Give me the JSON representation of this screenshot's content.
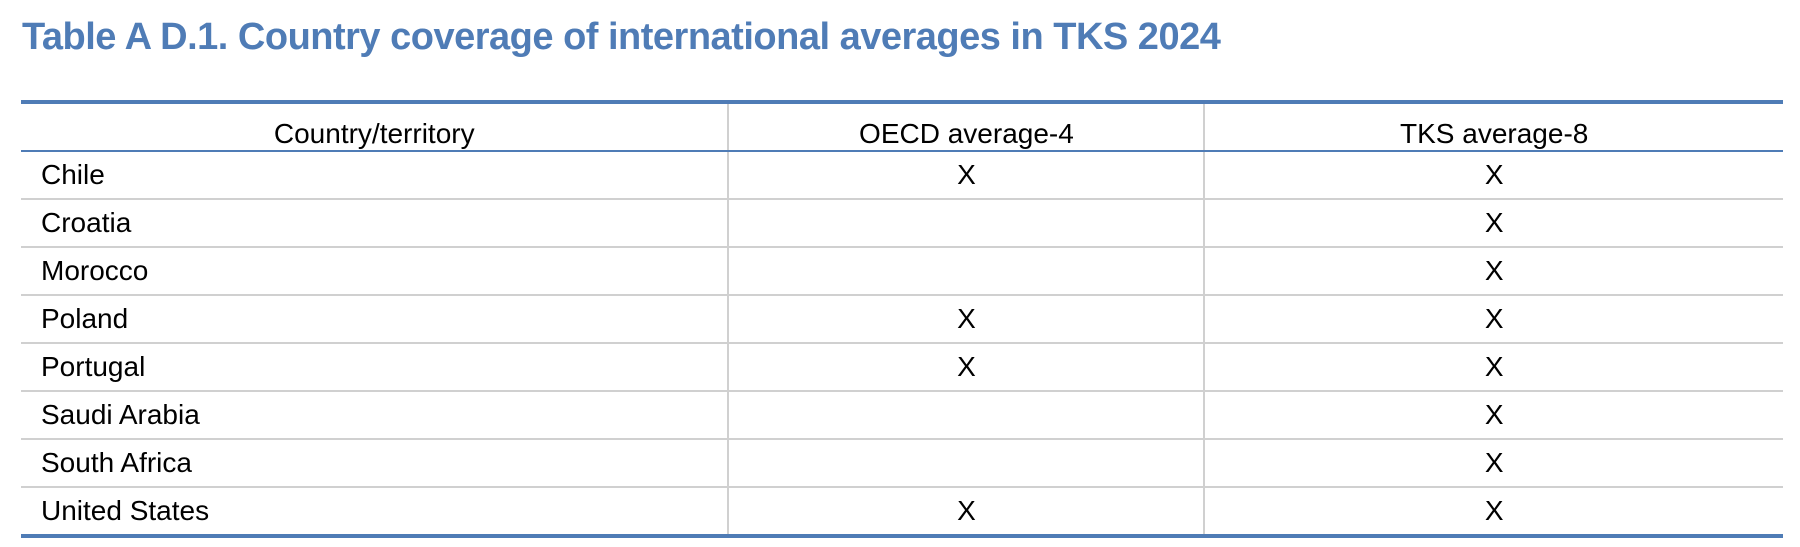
{
  "title": "Table A D.1. Country coverage of international averages in TKS 2024",
  "table": {
    "headers": [
      "Country/territory",
      "OECD average-4",
      "TKS average-8"
    ],
    "rows": [
      {
        "country": "Chile",
        "oecd": "X",
        "tks": "X"
      },
      {
        "country": "Croatia",
        "tks": "X"
      },
      {
        "country": "Morocco",
        "tks": "X"
      },
      {
        "country": "Poland",
        "oecd": "X",
        "tks": "X"
      },
      {
        "country": "Portugal",
        "oecd": "X",
        "tks": "X"
      },
      {
        "country": "Saudi Arabia",
        "tks": "X"
      },
      {
        "country": "South Africa",
        "tks": "X"
      },
      {
        "country": "United States",
        "oecd": "X",
        "tks": "X"
      }
    ]
  }
}
